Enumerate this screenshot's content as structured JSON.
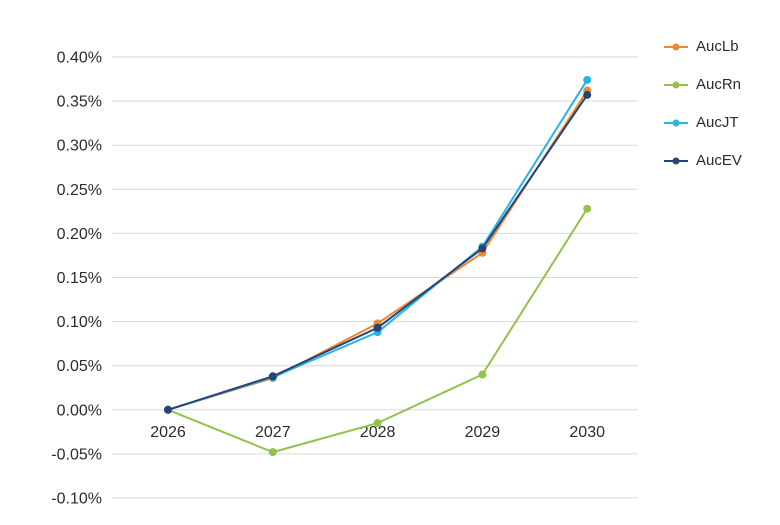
{
  "chart_data": {
    "type": "line",
    "title": "",
    "xlabel": "",
    "ylabel": "",
    "categories": [
      "2026",
      "2027",
      "2028",
      "2029",
      "2030"
    ],
    "series": [
      {
        "name": "AucLb",
        "color": "#ef8733",
        "values": [
          0.0,
          0.036,
          0.098,
          0.178,
          0.362
        ]
      },
      {
        "name": "AucRn",
        "color": "#92c24c",
        "values": [
          0.0,
          -0.048,
          -0.015,
          0.04,
          0.228
        ]
      },
      {
        "name": "AucJT",
        "color": "#27b4e8",
        "values": [
          0.0,
          0.037,
          0.088,
          0.185,
          0.374
        ]
      },
      {
        "name": "AucEV",
        "color": "#254478",
        "values": [
          0.0,
          0.038,
          0.093,
          0.183,
          0.357
        ]
      }
    ],
    "ylim": [
      -0.1,
      0.4
    ],
    "ytick_step": 0.05,
    "ytick_labels": [
      "0.40%",
      "0.35%",
      "0.30%",
      "0.25%",
      "0.20%",
      "0.15%",
      "0.10%",
      "0.05%",
      "0.00%",
      "-0.05%",
      "-0.10%"
    ],
    "ytick_format": "percent_2dp",
    "grid": "horizontal",
    "gridline_color": "#d9d9d9",
    "axis_text_color": "#2b2b2b",
    "legend_position": "right",
    "legend_labels": [
      "AucLb",
      "AucRn",
      "AucJT",
      "AucEV"
    ],
    "marker": "circle",
    "marker_radius": 4,
    "line_width": 2
  }
}
